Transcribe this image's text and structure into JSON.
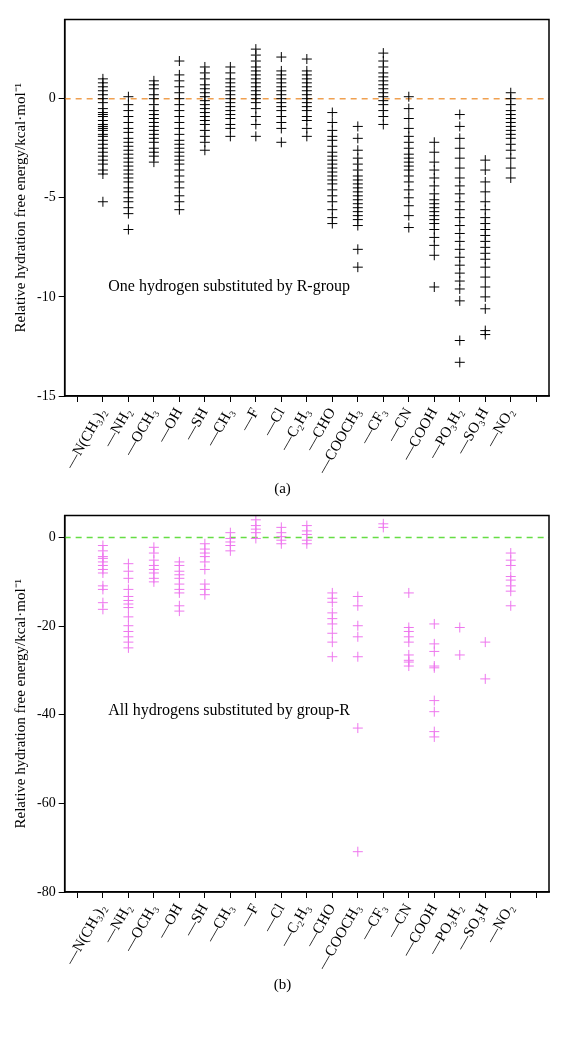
{
  "chart_data": [
    {
      "type": "scatter",
      "ylabel": "Relative hydration free energy/kcal·mol⁻¹",
      "categories": [
        null,
        "—N(CH₃)₂",
        "—NH₂",
        "—OCH₃",
        "—OH",
        "—SH",
        "—CH₃",
        "—F",
        "—Cl",
        "—C₂H₃",
        "—CHO",
        "—COOCH₃",
        "—CF₃",
        "—CN",
        "—COOH",
        "—PO₃H₂",
        "—SO₃H",
        "—NO₂",
        null
      ],
      "ylim": [
        -15,
        4
      ],
      "yticks": [
        -15,
        -10,
        -5,
        0
      ],
      "marker": "cross",
      "legend": false,
      "annotations": [
        "One hydrogen substituted by R-group",
        "(a)"
      ],
      "ref_lines": [
        {
          "axis": "y",
          "value": 0,
          "color": "#f0a050",
          "line_style": "dashed"
        }
      ],
      "series": [
        {
          "color": "#000000",
          "x": [
            "—N(CH₃)₂",
            "—N(CH₃)₂",
            "—N(CH₃)₂",
            "—N(CH₃)₂",
            "—N(CH₃)₂",
            "—N(CH₃)₂",
            "—N(CH₃)₂",
            "—N(CH₃)₂",
            "—N(CH₃)₂",
            "—N(CH₃)₂",
            "—N(CH₃)₂",
            "—N(CH₃)₂",
            "—N(CH₃)₂",
            "—N(CH₃)₂",
            "—N(CH₃)₂",
            "—N(CH₃)₂",
            "—N(CH₃)₂",
            "—N(CH₃)₂",
            "—N(CH₃)₂",
            "—N(CH₃)₂",
            "—N(CH₃)₂",
            "—N(CH₃)₂",
            "—N(CH₃)₂",
            "—N(CH₃)₂",
            "—N(CH₃)₂",
            "—N(CH₃)₂",
            "—N(CH₃)₂",
            "—N(CH₃)₂"
          ],
          "values": [
            1.0,
            0.8,
            0.6,
            0.4,
            0.2,
            0,
            -0.2,
            -0.5,
            -0.7,
            -0.8,
            -0.9,
            -1.1,
            -1.3,
            -1.4,
            -1.5,
            -1.6,
            -1.8,
            -1.9,
            -2.1,
            -2.3,
            -2.5,
            -2.7,
            -2.9,
            -3.1,
            -3.3,
            -3.6,
            -3.8,
            -5.2
          ]
        },
        {
          "color": "#000000",
          "x": [
            "—NH₂",
            "—NH₂",
            "—NH₂",
            "—NH₂",
            "—NH₂",
            "—NH₂",
            "—NH₂",
            "—NH₂",
            "—NH₂",
            "—NH₂",
            "—NH₂",
            "—NH₂",
            "—NH₂",
            "—NH₂",
            "—NH₂",
            "—NH₂",
            "—NH₂",
            "—NH₂",
            "—NH₂",
            "—NH₂",
            "—NH₂",
            "—NH₂",
            "—NH₂",
            "—NH₂",
            "—NH₂",
            "—NH₂"
          ],
          "values": [
            0.1,
            -0.3,
            -0.6,
            -0.9,
            -1.2,
            -1.5,
            -1.7,
            -2.0,
            -2.2,
            -2.4,
            -2.6,
            -2.8,
            -3.0,
            -3.2,
            -3.4,
            -3.6,
            -3.8,
            -4.0,
            -4.2,
            -4.5,
            -4.7,
            -5.0,
            -5.2,
            -5.5,
            -5.8,
            -6.6
          ]
        },
        {
          "color": "#000000",
          "x": [
            "—OCH₃",
            "—OCH₃",
            "—OCH₃",
            "—OCH₃",
            "—OCH₃",
            "—OCH₃",
            "—OCH₃",
            "—OCH₃",
            "—OCH₃",
            "—OCH₃",
            "—OCH₃",
            "—OCH₃",
            "—OCH₃",
            "—OCH₃",
            "—OCH₃",
            "—OCH₃",
            "—OCH₃",
            "—OCH₃",
            "—OCH₃"
          ],
          "values": [
            0.9,
            0.7,
            0.5,
            0.2,
            0,
            -0.3,
            -0.6,
            -0.8,
            -1.0,
            -1.2,
            -1.4,
            -1.6,
            -1.8,
            -2.0,
            -2.2,
            -2.5,
            -2.7,
            -2.9,
            -3.2
          ]
        },
        {
          "color": "#000000",
          "x": [
            "—OH",
            "—OH",
            "—OH",
            "—OH",
            "—OH",
            "—OH",
            "—OH",
            "—OH",
            "—OH",
            "—OH",
            "—OH",
            "—OH",
            "—OH",
            "—OH",
            "—OH",
            "—OH",
            "—OH",
            "—OH",
            "—OH",
            "—OH",
            "—OH",
            "—OH",
            "—OH",
            "—OH",
            "—OH",
            "—OH"
          ],
          "values": [
            1.9,
            1.2,
            0.9,
            0.6,
            0.3,
            0,
            -0.3,
            -0.6,
            -0.9,
            -1.2,
            -1.5,
            -1.8,
            -2.1,
            -2.3,
            -2.5,
            -2.7,
            -2.9,
            -3.1,
            -3.3,
            -3.6,
            -3.9,
            -4.2,
            -4.5,
            -4.9,
            -5.2,
            -5.6
          ]
        },
        {
          "color": "#000000",
          "x": [
            "—SH",
            "—SH",
            "—SH",
            "—SH",
            "—SH",
            "—SH",
            "—SH",
            "—SH",
            "—SH",
            "—SH",
            "—SH",
            "—SH",
            "—SH",
            "—SH",
            "—SH",
            "—SH",
            "—SH",
            "—SH"
          ],
          "values": [
            1.6,
            1.3,
            1.0,
            0.7,
            0.5,
            0.3,
            0.1,
            -0.1,
            -0.3,
            -0.5,
            -0.7,
            -0.9,
            -1.1,
            -1.3,
            -1.6,
            -1.9,
            -2.2,
            -2.6
          ]
        },
        {
          "color": "#000000",
          "x": [
            "—CH₃",
            "—CH₃",
            "—CH₃",
            "—CH₃",
            "—CH₃",
            "—CH₃",
            "—CH₃",
            "—CH₃",
            "—CH₃",
            "—CH₃",
            "—CH₃",
            "—CH₃",
            "—CH₃",
            "—CH₃",
            "—CH₃",
            "—CH₃"
          ],
          "values": [
            1.6,
            1.3,
            1.0,
            0.8,
            0.6,
            0.4,
            0.2,
            0,
            -0.2,
            -0.4,
            -0.6,
            -0.8,
            -1.0,
            -1.3,
            -1.5,
            -1.9
          ]
        },
        {
          "color": "#000000",
          "x": [
            "—F",
            "—F",
            "—F",
            "—F",
            "—F",
            "—F",
            "—F",
            "—F",
            "—F",
            "—F",
            "—F",
            "—F",
            "—F",
            "—F",
            "—F",
            "—F",
            "—F"
          ],
          "values": [
            2.5,
            2.2,
            1.9,
            1.6,
            1.4,
            1.2,
            1.0,
            0.8,
            0.6,
            0.4,
            0.2,
            0,
            -0.2,
            -0.5,
            -0.9,
            -1.3,
            -1.9
          ]
        },
        {
          "color": "#000000",
          "x": [
            "—Cl",
            "—Cl",
            "—Cl",
            "—Cl",
            "—Cl",
            "—Cl",
            "—Cl",
            "—Cl",
            "—Cl",
            "—Cl",
            "—Cl",
            "—Cl",
            "—Cl",
            "—Cl",
            "—Cl",
            "—Cl"
          ],
          "values": [
            2.1,
            1.4,
            1.2,
            1.0,
            0.8,
            0.6,
            0.4,
            0.2,
            0,
            -0.2,
            -0.4,
            -0.6,
            -0.9,
            -1.2,
            -1.5,
            -2.2
          ]
        },
        {
          "color": "#000000",
          "x": [
            "—C₂H₃",
            "—C₂H₃",
            "—C₂H₃",
            "—C₂H₃",
            "—C₂H₃",
            "—C₂H₃",
            "—C₂H₃",
            "—C₂H₃",
            "—C₂H₃",
            "—C₂H₃",
            "—C₂H₃",
            "—C₂H₃",
            "—C₂H₃",
            "—C₂H₃",
            "—C₂H₃",
            "—C₂H₃"
          ],
          "values": [
            2.0,
            1.4,
            1.2,
            1.0,
            0.8,
            0.6,
            0.4,
            0.2,
            0,
            -0.2,
            -0.4,
            -0.6,
            -0.9,
            -1.1,
            -1.5,
            -1.9
          ]
        },
        {
          "color": "#000000",
          "x": [
            "—CHO",
            "—CHO",
            "—CHO",
            "—CHO",
            "—CHO",
            "—CHO",
            "—CHO",
            "—CHO",
            "—CHO",
            "—CHO",
            "—CHO",
            "—CHO",
            "—CHO",
            "—CHO",
            "—CHO",
            "—CHO",
            "—CHO",
            "—CHO",
            "—CHO",
            "—CHO",
            "—CHO"
          ],
          "values": [
            -0.7,
            -1.2,
            -1.6,
            -1.9,
            -2.1,
            -2.4,
            -2.7,
            -2.9,
            -3.1,
            -3.3,
            -3.5,
            -3.7,
            -3.9,
            -4.1,
            -4.3,
            -4.6,
            -4.9,
            -5.2,
            -5.6,
            -6.0,
            -6.3
          ]
        },
        {
          "color": "#000000",
          "x": [
            "—COOCH₃",
            "—COOCH₃",
            "—COOCH₃",
            "—COOCH₃",
            "—COOCH₃",
            "—COOCH₃",
            "—COOCH₃",
            "—COOCH₃",
            "—COOCH₃",
            "—COOCH₃",
            "—COOCH₃",
            "—COOCH₃",
            "—COOCH₃",
            "—COOCH₃",
            "—COOCH₃",
            "—COOCH₃",
            "—COOCH₃",
            "—COOCH₃",
            "—COOCH₃",
            "—COOCH₃",
            "—COOCH₃"
          ],
          "values": [
            -1.4,
            -2.0,
            -2.6,
            -3.0,
            -3.3,
            -3.6,
            -3.9,
            -4.1,
            -4.3,
            -4.5,
            -4.7,
            -4.9,
            -5.1,
            -5.3,
            -5.5,
            -5.7,
            -5.9,
            -6.1,
            -6.4,
            -7.6,
            -8.5
          ]
        },
        {
          "color": "#000000",
          "x": [
            "—CF₃",
            "—CF₃",
            "—CF₃",
            "—CF₃",
            "—CF₃",
            "—CF₃",
            "—CF₃",
            "—CF₃",
            "—CF₃",
            "—CF₃",
            "—CF₃",
            "—CF₃",
            "—CF₃",
            "—CF₃",
            "—CF₃"
          ],
          "values": [
            2.3,
            1.9,
            1.6,
            1.3,
            1.1,
            0.9,
            0.7,
            0.5,
            0.3,
            0.1,
            -0.1,
            -0.3,
            -0.6,
            -0.9,
            -1.3
          ]
        },
        {
          "color": "#000000",
          "x": [
            "—CN",
            "—CN",
            "—CN",
            "—CN",
            "—CN",
            "—CN",
            "—CN",
            "—CN",
            "—CN",
            "—CN",
            "—CN",
            "—CN",
            "—CN",
            "—CN",
            "—CN",
            "—CN",
            "—CN",
            "—CN",
            "—CN"
          ],
          "values": [
            0.1,
            -0.5,
            -1.0,
            -1.5,
            -1.9,
            -2.2,
            -2.5,
            -2.8,
            -3.0,
            -3.2,
            -3.4,
            -3.6,
            -3.9,
            -4.2,
            -4.6,
            -5.0,
            -5.4,
            -5.9,
            -6.5
          ]
        },
        {
          "color": "#000000",
          "x": [
            "—COOH",
            "—COOH",
            "—COOH",
            "—COOH",
            "—COOH",
            "—COOH",
            "—COOH",
            "—COOH",
            "—COOH",
            "—COOH",
            "—COOH",
            "—COOH",
            "—COOH",
            "—COOH",
            "—COOH",
            "—COOH",
            "—COOH",
            "—COOH",
            "—COOH"
          ],
          "values": [
            -2.2,
            -2.7,
            -3.2,
            -3.6,
            -4.0,
            -4.4,
            -4.8,
            -5.1,
            -5.3,
            -5.5,
            -5.7,
            -5.9,
            -6.1,
            -6.3,
            -6.6,
            -7.0,
            -7.4,
            -7.9,
            -9.5
          ]
        },
        {
          "color": "#000000",
          "x": [
            "—PO₃H₂",
            "—PO₃H₂",
            "—PO₃H₂",
            "—PO₃H₂",
            "—PO₃H₂",
            "—PO₃H₂",
            "—PO₃H₂",
            "—PO₃H₂",
            "—PO₃H₂",
            "—PO₃H₂",
            "—PO₃H₂",
            "—PO₃H₂",
            "—PO₃H₂",
            "—PO₃H₂",
            "—PO₃H₂",
            "—PO₃H₂",
            "—PO₃H₂",
            "—PO₃H₂",
            "—PO₃H₂",
            "—PO₃H₂",
            "—PO₃H₂",
            "—PO₃H₂",
            "—PO₃H₂",
            "—PO₃H₂"
          ],
          "values": [
            -0.8,
            -1.4,
            -2.0,
            -2.5,
            -3.0,
            -3.5,
            -4.0,
            -4.4,
            -4.8,
            -5.2,
            -5.6,
            -6.0,
            -6.4,
            -6.8,
            -7.2,
            -7.6,
            -8.0,
            -8.4,
            -8.8,
            -9.2,
            -9.6,
            -10.2,
            -12.2,
            -13.3
          ]
        },
        {
          "color": "#000000",
          "x": [
            "—SO₃H",
            "—SO₃H",
            "—SO₃H",
            "—SO₃H",
            "—SO₃H",
            "—SO₃H",
            "—SO₃H",
            "—SO₃H",
            "—SO₃H",
            "—SO₃H",
            "—SO₃H",
            "—SO₃H",
            "—SO₃H",
            "—SO₃H",
            "—SO₃H",
            "—SO₃H",
            "—SO₃H",
            "—SO₃H",
            "—SO₃H",
            "—SO₃H",
            "—SO₃H"
          ],
          "values": [
            -3.1,
            -3.6,
            -4.2,
            -4.7,
            -5.2,
            -5.6,
            -6.0,
            -6.3,
            -6.6,
            -6.9,
            -7.2,
            -7.5,
            -7.8,
            -8.1,
            -8.5,
            -9.0,
            -9.5,
            -10.0,
            -10.6,
            -11.7,
            -11.9
          ]
        },
        {
          "color": "#000000",
          "x": [
            "—NO₂",
            "—NO₂",
            "—NO₂",
            "—NO₂",
            "—NO₂",
            "—NO₂",
            "—NO₂",
            "—NO₂",
            "—NO₂",
            "—NO₂",
            "—NO₂",
            "—NO₂",
            "—NO₂",
            "—NO₂",
            "—NO₂",
            "—NO₂"
          ],
          "values": [
            0.3,
            0,
            -0.3,
            -0.6,
            -0.8,
            -1.0,
            -1.2,
            -1.4,
            -1.6,
            -1.8,
            -2.0,
            -2.3,
            -2.6,
            -3.0,
            -3.5,
            -4.0
          ]
        }
      ]
    },
    {
      "type": "scatter",
      "ylabel": "Relative hydration free energy/kcal·mol⁻¹",
      "categories": [
        null,
        "—N(CH₃)₂",
        "—NH₂",
        "—OCH₃",
        "—OH",
        "—SH",
        "—CH₃",
        "—F",
        "—Cl",
        "—C₂H₃",
        "—CHO",
        "—COOCH₃",
        "—CF₃",
        "—CN",
        "—COOH",
        "—PO₃H₂",
        "—SO₃H",
        "—NO₂",
        null
      ],
      "ylim": [
        -80,
        5
      ],
      "yticks": [
        -80,
        -60,
        -40,
        -20,
        0
      ],
      "marker": "cross",
      "legend": false,
      "annotations": [
        "All hydrogens substituted by group-R",
        "(b)"
      ],
      "ref_lines": [
        {
          "axis": "y",
          "value": 0,
          "color": "#66dd44",
          "line_style": "dashed"
        }
      ],
      "series": [
        {
          "color": "#ee77ee",
          "x": [
            "—N(CH₃)₂",
            "—N(CH₃)₂",
            "—N(CH₃)₂",
            "—N(CH₃)₂",
            "—N(CH₃)₂",
            "—N(CH₃)₂",
            "—N(CH₃)₂",
            "—N(CH₃)₂",
            "—N(CH₃)₂",
            "—N(CH₃)₂",
            "—N(CH₃)₂",
            "—N(CH₃)₂"
          ],
          "values": [
            -1.8,
            -3.0,
            -4.3,
            -4.7,
            -5.5,
            -6.3,
            -7.2,
            -8,
            -10.9,
            -11.7,
            -14.7,
            -16.2
          ]
        },
        {
          "color": "#ee77ee",
          "x": [
            "—NH₂",
            "—NH₂",
            "—NH₂",
            "—NH₂",
            "—NH₂",
            "—NH₂",
            "—NH₂",
            "—NH₂",
            "—NH₂",
            "—NH₂",
            "—NH₂",
            "—NH₂",
            "—NH₂",
            "—NH₂"
          ],
          "values": [
            -5.9,
            -7.6,
            -9.2,
            -11.7,
            -13.3,
            -14.2,
            -15,
            -15.8,
            -17.9,
            -19.9,
            -21.2,
            -22.4,
            -23.6,
            -24.9
          ]
        },
        {
          "color": "#ee77ee",
          "x": [
            "—OCH₃",
            "—OCH₃",
            "—OCH₃",
            "—OCH₃",
            "—OCH₃",
            "—OCH₃",
            "—OCH₃",
            "—OCH₃"
          ],
          "values": [
            -2.2,
            -3.5,
            -5.1,
            -6.3,
            -7.2,
            -8,
            -9.2,
            -10
          ]
        },
        {
          "color": "#ee77ee",
          "x": [
            "—OH",
            "—OH",
            "—OH",
            "—OH",
            "—OH",
            "—OH",
            "—OH",
            "—OH",
            "—OH",
            "—OH"
          ],
          "values": [
            -5.5,
            -6.3,
            -7.6,
            -8.4,
            -9.2,
            -10.5,
            -11.7,
            -12.5,
            -15.4,
            -16.6
          ]
        },
        {
          "color": "#ee77ee",
          "x": [
            "—SH",
            "—SH",
            "—SH",
            "—SH",
            "—SH",
            "—SH",
            "—SH",
            "—SH",
            "—SH"
          ],
          "values": [
            -1.4,
            -2.6,
            -3.5,
            -4.3,
            -5.5,
            -7.2,
            -10.5,
            -11.7,
            -12.9
          ]
        },
        {
          "color": "#ee77ee",
          "x": [
            "—CH₃",
            "—CH₃",
            "—CH₃",
            "—CH₃",
            "—CH₃"
          ],
          "values": [
            1.1,
            -0.2,
            -1.0,
            -1.8,
            -3.0
          ]
        },
        {
          "color": "#ee77ee",
          "x": [
            "—F",
            "—F",
            "—F",
            "—F",
            "—F"
          ],
          "values": [
            4.0,
            2.7,
            1.9,
            1.1,
            -0.2
          ]
        },
        {
          "color": "#ee77ee",
          "x": [
            "—Cl",
            "—Cl",
            "—Cl",
            "—Cl",
            "—Cl"
          ],
          "values": [
            2.3,
            1.1,
            0.2,
            -0.6,
            -1.4
          ]
        },
        {
          "color": "#ee77ee",
          "x": [
            "—C₂H₃",
            "—C₂H₃",
            "—C₂H₃",
            "—C₂H₃",
            "—C₂H₃"
          ],
          "values": [
            2.7,
            1.5,
            0.7,
            -0.6,
            -1.4
          ]
        },
        {
          "color": "#ee77ee",
          "x": [
            "—CHO",
            "—CHO",
            "—CHO",
            "—CHO",
            "—CHO",
            "—CHO",
            "—CHO",
            "—CHO",
            "—CHO"
          ],
          "values": [
            -12.5,
            -13.7,
            -14.6,
            -17,
            -18.3,
            -19.5,
            -21.6,
            -23.6,
            -26.9
          ]
        },
        {
          "color": "#ee77ee",
          "x": [
            "—COOCH₃",
            "—COOCH₃",
            "—COOCH₃",
            "—COOCH₃",
            "—COOCH₃",
            "—COOCH₃",
            "—COOCH₃"
          ],
          "values": [
            -13.3,
            -15.4,
            -19.9,
            -22.4,
            -26.9,
            -43,
            -70.9
          ]
        },
        {
          "color": "#ee77ee",
          "x": [
            "—CF₃",
            "—CF₃"
          ],
          "values": [
            3.1,
            2.3
          ]
        },
        {
          "color": "#ee77ee",
          "x": [
            "—CN",
            "—CN",
            "—CN",
            "—CN",
            "—CN",
            "—CN",
            "—CN",
            "—CN",
            "—CN"
          ],
          "values": [
            -12.5,
            -20.3,
            -21.2,
            -22.4,
            -23.6,
            -26.5,
            -27.7,
            -28.1,
            -29
          ]
        },
        {
          "color": "#ee77ee",
          "x": [
            "—COOH",
            "—COOH",
            "—COOH",
            "—COOH",
            "—COOH",
            "—COOH",
            "—COOH",
            "—COOH",
            "—COOH"
          ],
          "values": [
            -19.5,
            -24,
            -25.7,
            -29,
            -29.4,
            -36.8,
            -39.3,
            -43.8,
            -45
          ]
        },
        {
          "color": "#ee77ee",
          "x": [
            "—PO₃H₂",
            "—PO₃H₂"
          ],
          "values": [
            -20.3,
            -26.5
          ]
        },
        {
          "color": "#ee77ee",
          "x": [
            "—SO₃H",
            "—SO₃H"
          ],
          "values": [
            -23.6,
            -31.9
          ]
        },
        {
          "color": "#ee77ee",
          "x": [
            "—NO₂",
            "—NO₂",
            "—NO₂",
            "—NO₂",
            "—NO₂",
            "—NO₂",
            "—NO₂",
            "—NO₂"
          ],
          "values": [
            -3.5,
            -5.1,
            -6.3,
            -8.8,
            -9.6,
            -10.9,
            -12.1,
            -15.4
          ]
        }
      ]
    }
  ]
}
